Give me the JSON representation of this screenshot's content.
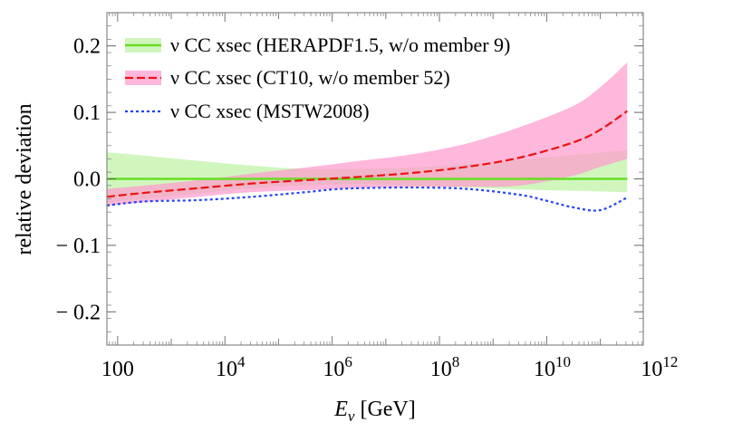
{
  "chart_data": {
    "type": "line",
    "title": "",
    "xlabel": "E_ν [GeV]",
    "xlabel_main": "E",
    "xlabel_sub": "ν",
    "xlabel_unit": " [GeV]",
    "ylabel": "relative deviation",
    "xscale": "log10",
    "xlim_log10": [
      1.8,
      11.8
    ],
    "ylim": [
      -0.25,
      0.25
    ],
    "grid": false,
    "legend_position": "top-left",
    "x_ticks": [
      {
        "log10": 2,
        "label": "100",
        "base": "",
        "exp": ""
      },
      {
        "log10": 4,
        "label": "",
        "base": "10",
        "exp": "4"
      },
      {
        "log10": 6,
        "label": "",
        "base": "10",
        "exp": "6"
      },
      {
        "log10": 8,
        "label": "",
        "base": "10",
        "exp": "8"
      },
      {
        "log10": 10,
        "label": "",
        "base": "10",
        "exp": "10"
      },
      {
        "log10": 12,
        "label": "",
        "base": "10",
        "exp": "12"
      }
    ],
    "y_ticks": [
      {
        "value": 0.2,
        "label": "0.2"
      },
      {
        "value": 0.1,
        "label": "0.1"
      },
      {
        "value": 0.0,
        "label": "0.0"
      },
      {
        "value": -0.1,
        "label": "− 0.1"
      },
      {
        "value": -0.2,
        "label": "− 0.2"
      }
    ],
    "series": [
      {
        "name": "ν CC xsec (HERAPDF1.5, w/o member 9)",
        "color": "#66dd22",
        "band_color": "#aaee88",
        "band_opacity": 0.55,
        "dash": "solid",
        "x_log10": [
          1.8,
          4,
          6,
          8,
          10,
          11.5
        ],
        "y": [
          0.0,
          0.0,
          0.0,
          0.0,
          0.0,
          0.0
        ],
        "band_x_log10": [
          1.8,
          2.5,
          3.5,
          4.5,
          5.5,
          6.5,
          7.5,
          8.5,
          9.5,
          10.5,
          11.5
        ],
        "band_upper": [
          0.04,
          0.035,
          0.027,
          0.02,
          0.015,
          0.015,
          0.017,
          0.022,
          0.029,
          0.036,
          0.043
        ],
        "band_lower": [
          -0.035,
          -0.03,
          -0.022,
          -0.014,
          -0.01,
          -0.008,
          -0.01,
          -0.013,
          -0.016,
          -0.018,
          -0.02
        ]
      },
      {
        "name": "ν CC xsec (CT10, w/o member 52)",
        "color": "#ee1111",
        "band_color": "#ff99cc",
        "band_opacity": 0.7,
        "dash": "dashed",
        "x_log10": [
          1.8,
          2.5,
          3.5,
          4.5,
          5.5,
          6.5,
          7.5,
          8.5,
          9.5,
          10.5,
          11,
          11.5
        ],
        "y": [
          -0.027,
          -0.021,
          -0.014,
          -0.007,
          -0.002,
          0.003,
          0.009,
          0.018,
          0.032,
          0.055,
          0.074,
          0.102
        ],
        "band_x_log10": [
          1.8,
          2.5,
          3.5,
          4.5,
          5.5,
          6.5,
          7.5,
          8.5,
          9.5,
          10.5,
          11,
          11.5
        ],
        "band_upper": [
          -0.015,
          -0.01,
          -0.002,
          0.008,
          0.017,
          0.027,
          0.037,
          0.053,
          0.078,
          0.11,
          0.138,
          0.175
        ],
        "band_lower": [
          -0.04,
          -0.035,
          -0.027,
          -0.02,
          -0.017,
          -0.014,
          -0.012,
          -0.012,
          -0.01,
          0.005,
          0.018,
          0.03
        ]
      },
      {
        "name": "ν CC xsec (MSTW2008)",
        "color": "#2244ee",
        "dash": "dotted",
        "x_log10": [
          1.8,
          2.5,
          3.5,
          4.5,
          5.5,
          6,
          6.5,
          7.5,
          8.5,
          9.5,
          10,
          10.5,
          11,
          11.5
        ],
        "y": [
          -0.04,
          -0.034,
          -0.032,
          -0.027,
          -0.02,
          -0.016,
          -0.014,
          -0.013,
          -0.015,
          -0.024,
          -0.033,
          -0.043,
          -0.047,
          -0.028
        ]
      }
    ]
  }
}
